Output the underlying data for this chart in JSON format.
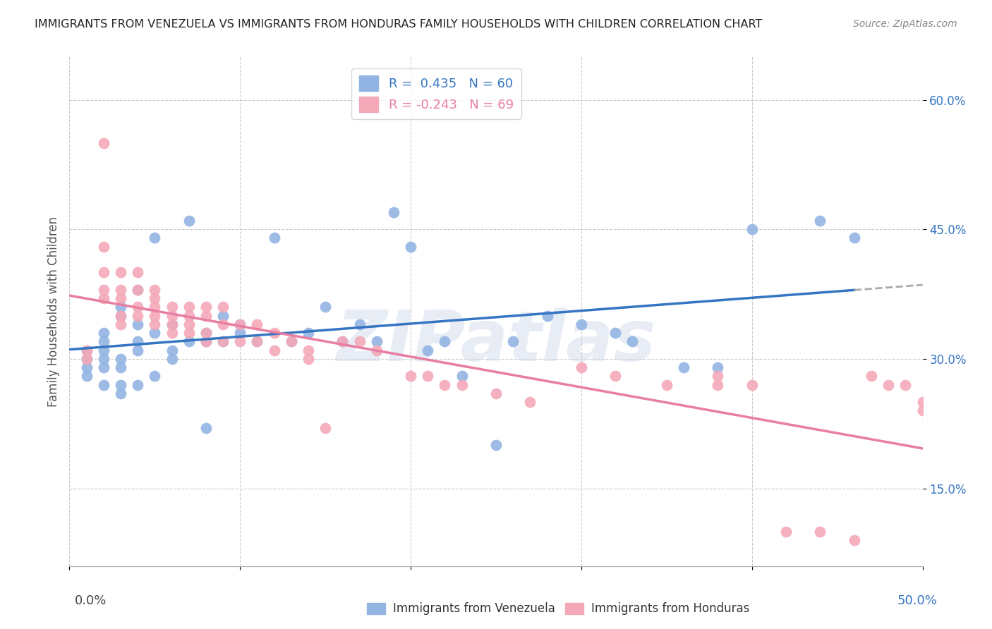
{
  "title": "IMMIGRANTS FROM VENEZUELA VS IMMIGRANTS FROM HONDURAS FAMILY HOUSEHOLDS WITH CHILDREN CORRELATION CHART",
  "source": "Source: ZipAtlas.com",
  "ylabel": "Family Households with Children",
  "y_ticks": [
    0.15,
    0.3,
    0.45,
    0.6
  ],
  "y_tick_labels": [
    "15.0%",
    "30.0%",
    "45.0%",
    "60.0%"
  ],
  "x_range": [
    0.0,
    0.5
  ],
  "y_range": [
    0.06,
    0.65
  ],
  "color_venezuela": "#92b4e3",
  "color_honduras": "#f4a9b8",
  "color_venezuela_line": "#3575c2",
  "color_honduras_line": "#e87ea1",
  "watermark": "ZIPatlas",
  "venezuela_x": [
    0.01,
    0.01,
    0.01,
    0.01,
    0.02,
    0.02,
    0.02,
    0.02,
    0.02,
    0.02,
    0.03,
    0.03,
    0.03,
    0.03,
    0.03,
    0.03,
    0.04,
    0.04,
    0.04,
    0.04,
    0.04,
    0.05,
    0.05,
    0.05,
    0.06,
    0.06,
    0.06,
    0.07,
    0.07,
    0.08,
    0.08,
    0.08,
    0.09,
    0.09,
    0.1,
    0.1,
    0.11,
    0.12,
    0.13,
    0.14,
    0.15,
    0.16,
    0.17,
    0.18,
    0.19,
    0.2,
    0.21,
    0.22,
    0.23,
    0.25,
    0.26,
    0.28,
    0.3,
    0.32,
    0.33,
    0.36,
    0.38,
    0.4,
    0.44,
    0.46
  ],
  "venezuela_y": [
    0.3,
    0.31,
    0.29,
    0.28,
    0.32,
    0.31,
    0.3,
    0.33,
    0.29,
    0.27,
    0.36,
    0.35,
    0.3,
    0.29,
    0.27,
    0.26,
    0.38,
    0.34,
    0.32,
    0.31,
    0.27,
    0.44,
    0.33,
    0.28,
    0.34,
    0.31,
    0.3,
    0.46,
    0.32,
    0.33,
    0.32,
    0.22,
    0.35,
    0.32,
    0.34,
    0.33,
    0.32,
    0.44,
    0.32,
    0.33,
    0.36,
    0.32,
    0.34,
    0.32,
    0.47,
    0.43,
    0.31,
    0.32,
    0.28,
    0.2,
    0.32,
    0.35,
    0.34,
    0.33,
    0.32,
    0.29,
    0.29,
    0.45,
    0.46,
    0.44
  ],
  "honduras_x": [
    0.01,
    0.01,
    0.02,
    0.02,
    0.02,
    0.02,
    0.02,
    0.03,
    0.03,
    0.03,
    0.03,
    0.03,
    0.04,
    0.04,
    0.04,
    0.04,
    0.05,
    0.05,
    0.05,
    0.05,
    0.05,
    0.06,
    0.06,
    0.06,
    0.06,
    0.07,
    0.07,
    0.07,
    0.07,
    0.08,
    0.08,
    0.08,
    0.08,
    0.09,
    0.09,
    0.09,
    0.1,
    0.1,
    0.11,
    0.11,
    0.12,
    0.12,
    0.13,
    0.14,
    0.14,
    0.15,
    0.16,
    0.17,
    0.18,
    0.2,
    0.21,
    0.22,
    0.23,
    0.25,
    0.27,
    0.3,
    0.32,
    0.35,
    0.38,
    0.4,
    0.42,
    0.44,
    0.46,
    0.47,
    0.48,
    0.49,
    0.5,
    0.5,
    0.38
  ],
  "honduras_y": [
    0.3,
    0.31,
    0.55,
    0.43,
    0.4,
    0.38,
    0.37,
    0.4,
    0.38,
    0.37,
    0.35,
    0.34,
    0.4,
    0.38,
    0.36,
    0.35,
    0.38,
    0.37,
    0.36,
    0.35,
    0.34,
    0.36,
    0.35,
    0.34,
    0.33,
    0.36,
    0.35,
    0.34,
    0.33,
    0.36,
    0.35,
    0.33,
    0.32,
    0.36,
    0.34,
    0.32,
    0.34,
    0.32,
    0.34,
    0.32,
    0.33,
    0.31,
    0.32,
    0.31,
    0.3,
    0.22,
    0.32,
    0.32,
    0.31,
    0.28,
    0.28,
    0.27,
    0.27,
    0.26,
    0.25,
    0.29,
    0.28,
    0.27,
    0.28,
    0.27,
    0.1,
    0.1,
    0.09,
    0.28,
    0.27,
    0.27,
    0.25,
    0.24,
    0.27
  ]
}
